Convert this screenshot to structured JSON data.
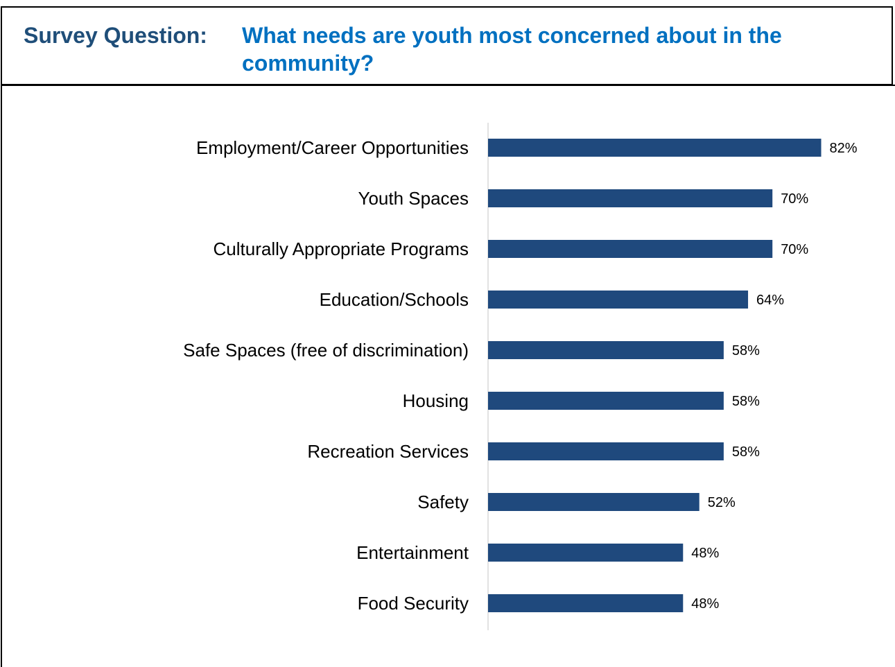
{
  "header": {
    "prefix": "Survey Question:",
    "question": "What needs are youth most concerned about in the community?"
  },
  "colors": {
    "prefix": "#1f4e79",
    "question": "#0070c0",
    "bar": "#1f497d",
    "axis": "#d9d9d9"
  },
  "chart_data": {
    "type": "bar",
    "orientation": "horizontal",
    "title": "",
    "xlabel": "",
    "ylabel": "",
    "value_format": "percent",
    "xlim": [
      0,
      85
    ],
    "grid": false,
    "legend": "none",
    "categories": [
      "Employment/Career Opportunities",
      "Youth Spaces",
      "Culturally Appropriate Programs",
      "Education/Schools",
      "Safe Spaces (free of discrimination)",
      "Housing",
      "Recreation Services",
      "Safety",
      "Entertainment",
      "Food Security"
    ],
    "values": [
      82,
      70,
      70,
      64,
      58,
      58,
      58,
      52,
      48,
      48
    ],
    "data_labels": [
      "82%",
      "70%",
      "70%",
      "64%",
      "58%",
      "58%",
      "58%",
      "52%",
      "48%",
      "48%"
    ]
  }
}
